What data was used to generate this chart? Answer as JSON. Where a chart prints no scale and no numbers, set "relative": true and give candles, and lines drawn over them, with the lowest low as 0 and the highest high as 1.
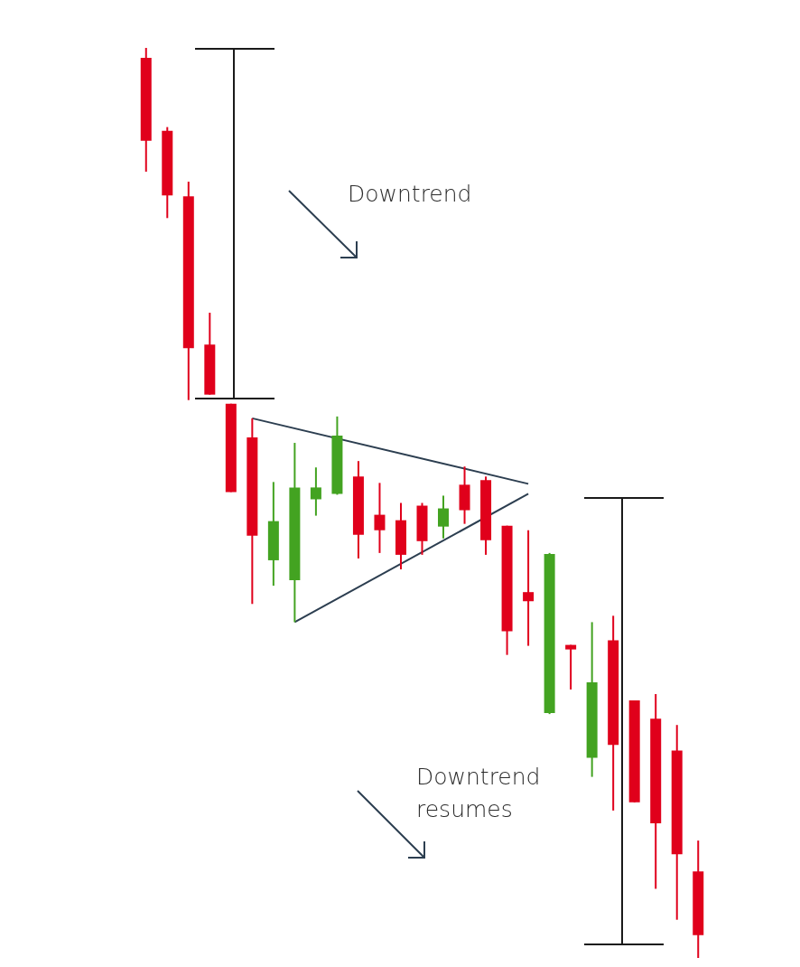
{
  "chart_data": {
    "type": "candlestick",
    "relative": true,
    "categories": [
      null,
      null,
      null,
      null,
      null,
      null,
      null,
      null,
      null,
      null,
      null,
      null,
      null,
      null,
      null,
      null,
      null,
      null,
      null,
      null,
      null,
      null,
      null,
      null,
      null,
      null,
      null
    ],
    "ohlc": [
      [
        0.989,
        1.0,
        0.864,
        0.898
      ],
      [
        0.909,
        0.913,
        0.813,
        0.838
      ],
      [
        0.837,
        0.853,
        0.613,
        0.67
      ],
      [
        0.674,
        0.709,
        0.619,
        0.619
      ],
      [
        0.609,
        0.609,
        0.512,
        0.512
      ],
      [
        0.572,
        0.593,
        0.389,
        0.464
      ],
      [
        0.437,
        0.523,
        0.409,
        0.48
      ],
      [
        0.415,
        0.566,
        0.369,
        0.517
      ],
      [
        0.504,
        0.539,
        0.486,
        0.517
      ],
      [
        0.51,
        0.595,
        0.509,
        0.574
      ],
      [
        0.529,
        0.546,
        0.439,
        0.465
      ],
      [
        0.487,
        0.522,
        0.445,
        0.47
      ],
      [
        0.481,
        0.5,
        0.427,
        0.443
      ],
      [
        0.497,
        0.5,
        0.443,
        0.458
      ],
      [
        0.474,
        0.508,
        0.461,
        0.494
      ],
      [
        0.52,
        0.54,
        0.477,
        0.492
      ],
      [
        0.525,
        0.529,
        0.443,
        0.459
      ],
      [
        0.475,
        0.475,
        0.333,
        0.359
      ],
      [
        0.402,
        0.47,
        0.343,
        0.392
      ],
      [
        0.269,
        0.445,
        0.268,
        0.444
      ],
      [
        0.344,
        0.344,
        0.295,
        0.339
      ],
      [
        0.22,
        0.369,
        0.199,
        0.303
      ],
      [
        0.349,
        0.376,
        0.162,
        0.234
      ],
      [
        0.283,
        0.283,
        0.171,
        0.171
      ],
      [
        0.263,
        0.29,
        0.076,
        0.148
      ],
      [
        0.228,
        0.256,
        0.042,
        0.114
      ],
      [
        0.095,
        0.129,
        0.0,
        0.025
      ]
    ],
    "colors": [
      "#e0001b",
      "#e0001b",
      "#e0001b",
      "#e0001b",
      "#e0001b",
      "#e0001b",
      "#43a321",
      "#43a321",
      "#43a321",
      "#43a321",
      "#e0001b",
      "#e0001b",
      "#e0001b",
      "#e0001b",
      "#43a321",
      "#e0001b",
      "#e0001b",
      "#e0001b",
      "#e0001b",
      "#43a321",
      "#e0001b",
      "#43a321",
      "#e0001b",
      "#e0001b",
      "#e0001b",
      "#e0001b",
      "#e0001b"
    ],
    "series": [
      {
        "type": "line",
        "color": "#2c3e50",
        "values": [
          null,
          null,
          null,
          null,
          null,
          0.593,
          null,
          null,
          null,
          null,
          null,
          null,
          null,
          null,
          null,
          null,
          null,
          null,
          0.521,
          null,
          null,
          null,
          null,
          null,
          null,
          null,
          null
        ]
      },
      {
        "type": "line",
        "color": "#2c3e50",
        "values": [
          null,
          null,
          null,
          null,
          null,
          null,
          null,
          0.369,
          null,
          null,
          null,
          null,
          null,
          null,
          null,
          null,
          null,
          null,
          0.51,
          null,
          null,
          null,
          null,
          null,
          null,
          null,
          null
        ]
      }
    ],
    "marker": "none",
    "annotations": [
      "Downtrend",
      "Downtrend\nresumes"
    ]
  }
}
